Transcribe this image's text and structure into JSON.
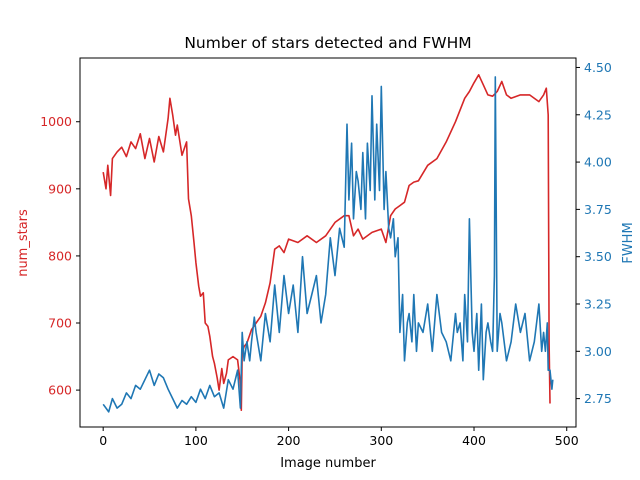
{
  "chart_data": {
    "type": "line",
    "title": "Number of stars detected and FWHM",
    "xlabel": "Image number",
    "xlim": [
      -25,
      510
    ],
    "xticks": [
      0,
      100,
      200,
      300,
      400,
      500
    ],
    "colors": {
      "left": "#d62728",
      "right": "#1f77b4",
      "axes": "#000000"
    },
    "left_axis": {
      "label": "num_stars",
      "ylim": [
        545,
        1095
      ],
      "ticks": [
        600,
        700,
        800,
        900,
        1000
      ]
    },
    "right_axis": {
      "label": "FWHM",
      "ylim": [
        2.6,
        4.55
      ],
      "ticks": [
        2.75,
        3.0,
        3.25,
        3.5,
        3.75,
        4.0,
        4.25,
        4.5
      ],
      "tick_labels": [
        "2.75",
        "3.00",
        "3.25",
        "3.50",
        "3.75",
        "4.00",
        "4.25",
        "4.50"
      ]
    },
    "series": [
      {
        "name": "num_stars",
        "axis": "left",
        "x": [
          0,
          3,
          5,
          8,
          10,
          15,
          20,
          25,
          30,
          35,
          40,
          45,
          50,
          55,
          60,
          65,
          70,
          72,
          75,
          78,
          80,
          85,
          90,
          92,
          95,
          98,
          100,
          103,
          105,
          108,
          110,
          113,
          115,
          118,
          120,
          123,
          125,
          128,
          130,
          133,
          135,
          140,
          145,
          148,
          149,
          150,
          152,
          155,
          160,
          165,
          170,
          175,
          180,
          185,
          190,
          195,
          200,
          210,
          220,
          230,
          240,
          250,
          260,
          265,
          270,
          275,
          280,
          290,
          300,
          305,
          310,
          315,
          320,
          325,
          330,
          335,
          340,
          350,
          360,
          370,
          380,
          390,
          395,
          400,
          405,
          410,
          415,
          420,
          425,
          430,
          435,
          440,
          450,
          460,
          470,
          475,
          478,
          480,
          481,
          482
        ],
        "values": [
          925,
          900,
          935,
          890,
          945,
          955,
          962,
          948,
          970,
          960,
          982,
          945,
          975,
          940,
          978,
          955,
          1005,
          1035,
          1010,
          980,
          995,
          950,
          970,
          885,
          860,
          820,
          790,
          755,
          740,
          745,
          700,
          695,
          680,
          650,
          640,
          618,
          600,
          632,
          610,
          625,
          645,
          650,
          645,
          610,
          570,
          655,
          665,
          670,
          690,
          700,
          710,
          730,
          760,
          810,
          815,
          805,
          825,
          820,
          830,
          820,
          830,
          850,
          860,
          860,
          830,
          840,
          825,
          835,
          840,
          820,
          860,
          870,
          875,
          880,
          905,
          910,
          912,
          935,
          945,
          970,
          1000,
          1035,
          1045,
          1058,
          1070,
          1055,
          1040,
          1038,
          1045,
          1060,
          1040,
          1035,
          1040,
          1040,
          1030,
          1040,
          1050,
          1010,
          670,
          580
        ]
      },
      {
        "name": "FWHM",
        "axis": "right",
        "x": [
          0,
          3,
          6,
          10,
          15,
          20,
          25,
          30,
          35,
          40,
          45,
          50,
          55,
          60,
          65,
          70,
          75,
          80,
          85,
          90,
          95,
          100,
          105,
          110,
          115,
          120,
          125,
          130,
          135,
          140,
          145,
          148,
          150,
          152,
          155,
          158,
          160,
          163,
          165,
          170,
          175,
          180,
          185,
          190,
          195,
          200,
          205,
          210,
          215,
          220,
          225,
          230,
          235,
          240,
          245,
          250,
          255,
          260,
          263,
          265,
          268,
          270,
          273,
          275,
          278,
          280,
          283,
          285,
          288,
          290,
          293,
          295,
          298,
          300,
          303,
          305,
          308,
          310,
          313,
          315,
          318,
          320,
          323,
          325,
          328,
          330,
          333,
          335,
          338,
          340,
          345,
          350,
          355,
          360,
          365,
          370,
          375,
          380,
          382,
          385,
          388,
          390,
          393,
          395,
          398,
          400,
          403,
          405,
          408,
          410,
          413,
          415,
          418,
          420,
          422,
          423,
          425,
          428,
          430,
          435,
          440,
          445,
          450,
          455,
          460,
          465,
          470,
          473,
          475,
          477,
          479,
          480,
          482,
          484,
          485
        ],
        "values": [
          2.72,
          2.7,
          2.68,
          2.75,
          2.7,
          2.72,
          2.78,
          2.75,
          2.82,
          2.8,
          2.85,
          2.9,
          2.82,
          2.88,
          2.86,
          2.8,
          2.75,
          2.7,
          2.74,
          2.72,
          2.76,
          2.73,
          2.8,
          2.75,
          2.82,
          2.76,
          2.78,
          2.7,
          2.85,
          2.8,
          2.9,
          2.7,
          3.1,
          2.95,
          3.05,
          2.95,
          3.05,
          3.18,
          3.1,
          2.95,
          3.2,
          3.05,
          3.35,
          3.1,
          3.4,
          3.2,
          3.35,
          3.1,
          3.5,
          3.2,
          3.3,
          3.4,
          3.15,
          3.3,
          3.6,
          3.4,
          3.65,
          3.55,
          4.2,
          3.8,
          4.1,
          3.7,
          3.95,
          3.9,
          3.75,
          4.05,
          3.7,
          4.1,
          3.85,
          4.35,
          3.8,
          4.2,
          3.85,
          4.4,
          3.75,
          3.95,
          3.65,
          3.6,
          3.7,
          3.5,
          3.6,
          3.1,
          3.3,
          2.95,
          3.15,
          3.2,
          3.05,
          3.3,
          3.0,
          3.15,
          3.1,
          3.25,
          3.0,
          3.3,
          3.1,
          3.05,
          2.95,
          3.2,
          3.1,
          3.15,
          2.95,
          3.3,
          3.05,
          3.7,
          3.1,
          3.0,
          3.2,
          2.9,
          3.25,
          2.85,
          3.1,
          3.15,
          3.05,
          3.0,
          3.4,
          4.45,
          3.0,
          3.2,
          3.15,
          2.95,
          3.05,
          3.25,
          3.1,
          3.2,
          2.95,
          3.05,
          3.25,
          3.0,
          3.1,
          3.0,
          3.15,
          2.9,
          2.9,
          2.8,
          2.85
        ]
      }
    ]
  }
}
